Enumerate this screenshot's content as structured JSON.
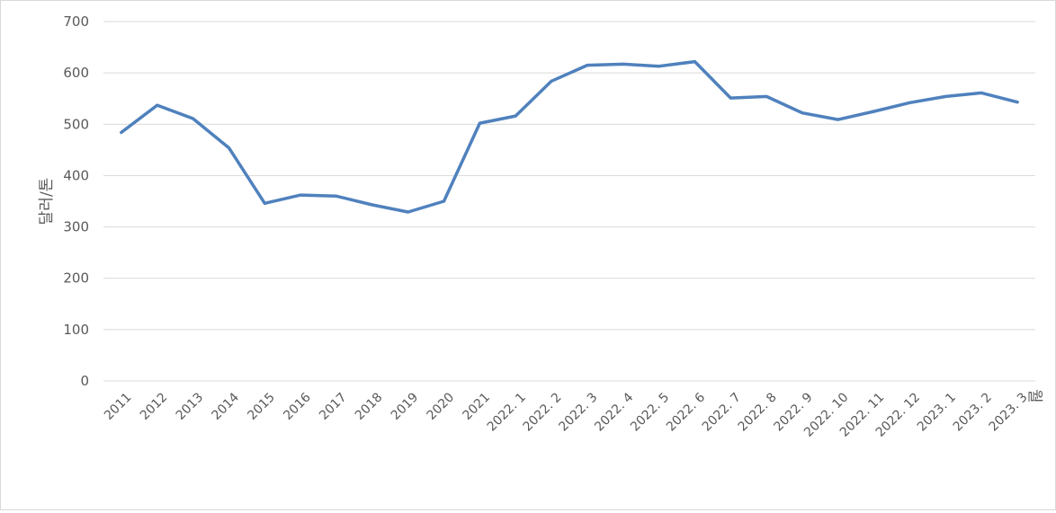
{
  "chart_data": {
    "type": "line",
    "ylabel": "달러/톤",
    "xunit": "월",
    "ylim": [
      0,
      700
    ],
    "yticks": [
      0,
      100,
      200,
      300,
      400,
      500,
      600,
      700
    ],
    "grid": true,
    "legend": "none",
    "categories": [
      "2011",
      "2012",
      "2013",
      "2014",
      "2015",
      "2016",
      "2017",
      "2018",
      "2019",
      "2020",
      "2021",
      "2022. 1",
      "2022. 2",
      "2022. 3",
      "2022. 4",
      "2022. 5",
      "2022. 6",
      "2022. 7",
      "2022. 8",
      "2022. 9",
      "2022. 10",
      "2022. 11",
      "2022. 12",
      "2023. 1",
      "2023. 2",
      "2023. 3"
    ],
    "series": [
      {
        "color": "#4f81bd",
        "values": [
          484,
          537,
          511,
          454,
          346,
          362,
          360,
          343,
          329,
          350,
          502,
          516,
          584,
          615,
          617,
          613,
          622,
          551,
          554,
          522,
          509,
          525,
          542,
          554,
          561,
          543
        ]
      }
    ]
  }
}
